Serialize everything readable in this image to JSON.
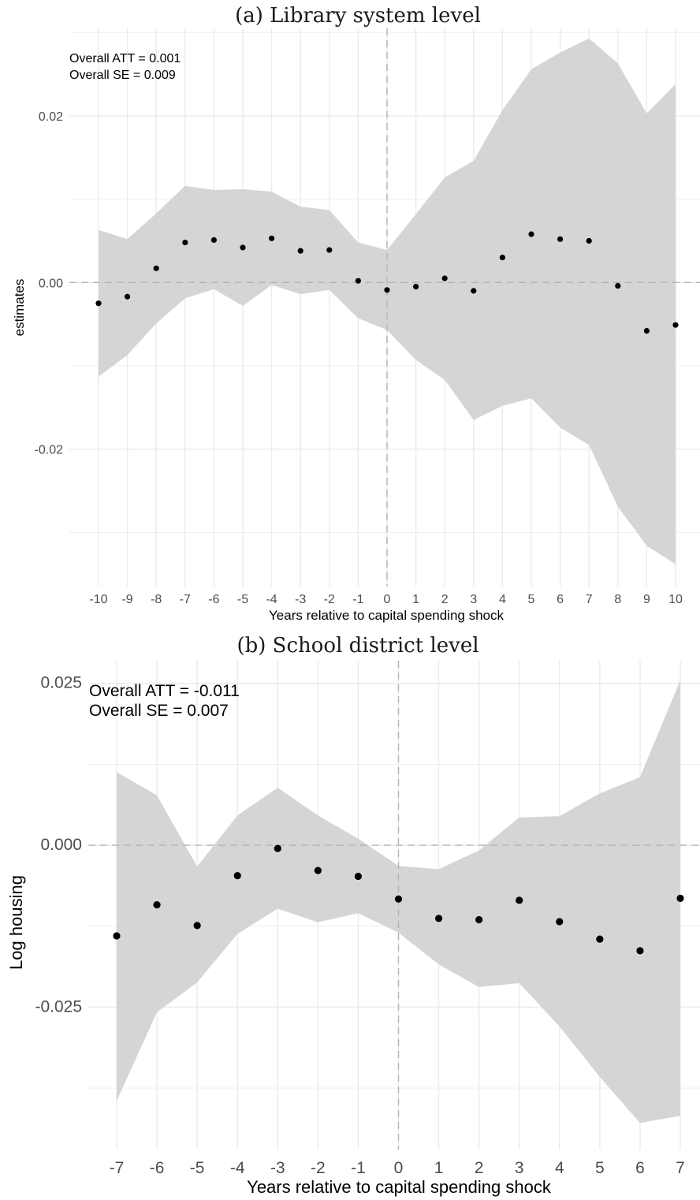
{
  "chart_data": [
    {
      "type": "scatter",
      "title": "(a) Library system level",
      "xlabel": "Years relative to capital spending shock",
      "ylabel": "estimates",
      "annotations": [
        "Overall ATT = 0.001",
        "Overall SE =  0.009"
      ],
      "x": [
        -10,
        -9,
        -8,
        -7,
        -6,
        -5,
        -4,
        -3,
        -2,
        -1,
        0,
        1,
        2,
        3,
        4,
        5,
        6,
        7,
        8,
        9,
        10
      ],
      "x_tick_labels": [
        "-10",
        "-9",
        "-8",
        "-7",
        "-6",
        "-5",
        "-4",
        "-3",
        "-2",
        "-1",
        "0",
        "1",
        "2",
        "3",
        "4",
        "5",
        "6",
        "7",
        "8",
        "9",
        "10"
      ],
      "y_ticks": [
        0.02,
        0.0,
        -0.02
      ],
      "y_tick_labels": [
        "0.02",
        "0.00",
        "-0.02"
      ],
      "ylim": [
        -0.0365,
        0.0305
      ],
      "series": [
        {
          "estimate": [
            -0.0025,
            -0.0017,
            0.0017,
            0.0048,
            0.0051,
            0.0042,
            0.0053,
            0.0038,
            0.0039,
            0.0002,
            -0.0009,
            -0.0005,
            0.0005,
            -0.001,
            0.003,
            0.0058,
            0.0052,
            0.005,
            -0.0004,
            -0.0058,
            -0.0051
          ],
          "ci_lower": [
            -0.0113,
            -0.0087,
            -0.0049,
            -0.0019,
            -0.0008,
            -0.0028,
            -0.0003,
            -0.0014,
            -0.0009,
            -0.0043,
            -0.0057,
            -0.0093,
            -0.0117,
            -0.0165,
            -0.0148,
            -0.0139,
            -0.0174,
            -0.0195,
            -0.0269,
            -0.0316,
            -0.0338
          ],
          "ci_upper": [
            0.0063,
            0.0052,
            0.0083,
            0.0116,
            0.0111,
            0.0112,
            0.0109,
            0.0091,
            0.0087,
            0.0048,
            0.0039,
            0.0082,
            0.0126,
            0.0146,
            0.0207,
            0.0256,
            0.0276,
            0.0293,
            0.0263,
            0.0203,
            0.0238
          ]
        }
      ],
      "reference_lines": {
        "y": 0,
        "x": 0
      },
      "grid": true,
      "colors": {
        "band": "#d3d3d3",
        "point": "#000000",
        "grid": "#ebebeb",
        "ref": "#b3b3b3"
      }
    },
    {
      "type": "scatter",
      "title": "(b) School district level",
      "xlabel": "Years relative to capital spending shock",
      "ylabel": "Log housing",
      "annotations": [
        "Overall ATT = -0.011",
        "Overall SE =  0.007"
      ],
      "x": [
        -7,
        -6,
        -5,
        -4,
        -3,
        -2,
        -1,
        0,
        1,
        2,
        3,
        4,
        5,
        6,
        7
      ],
      "x_tick_labels": [
        "-7",
        "-6",
        "-5",
        "-4",
        "-3",
        "-2",
        "-1",
        "0",
        "1",
        "2",
        "3",
        "4",
        "5",
        "6",
        "7"
      ],
      "y_ticks": [
        0.025,
        0.0,
        -0.025
      ],
      "y_tick_labels": [
        "0.025",
        "0.000",
        "-0.025"
      ],
      "ylim": [
        -0.047,
        0.0285
      ],
      "series": [
        {
          "estimate": [
            -0.014,
            -0.0092,
            -0.0124,
            -0.0047,
            -0.0005,
            -0.0039,
            -0.0048,
            -0.0083,
            -0.0113,
            -0.0115,
            -0.0085,
            -0.0118,
            -0.0145,
            -0.0163,
            -0.0082
          ],
          "ci_lower": [
            -0.0395,
            -0.0258,
            -0.0212,
            -0.0137,
            -0.0098,
            -0.0119,
            -0.0105,
            -0.0135,
            -0.0184,
            -0.0219,
            -0.0213,
            -0.028,
            -0.0358,
            -0.0429,
            -0.0418
          ],
          "ci_upper": [
            0.0113,
            0.0077,
            -0.0033,
            0.0046,
            0.0089,
            0.0046,
            0.001,
            -0.0032,
            -0.0037,
            -0.0008,
            0.0043,
            0.0045,
            0.008,
            0.0105,
            0.0255
          ]
        }
      ],
      "reference_lines": {
        "y": 0,
        "x": 0
      },
      "grid": true,
      "colors": {
        "band": "#d3d3d3",
        "point": "#000000",
        "grid": "#ebebeb",
        "ref": "#b3b3b3"
      }
    }
  ]
}
